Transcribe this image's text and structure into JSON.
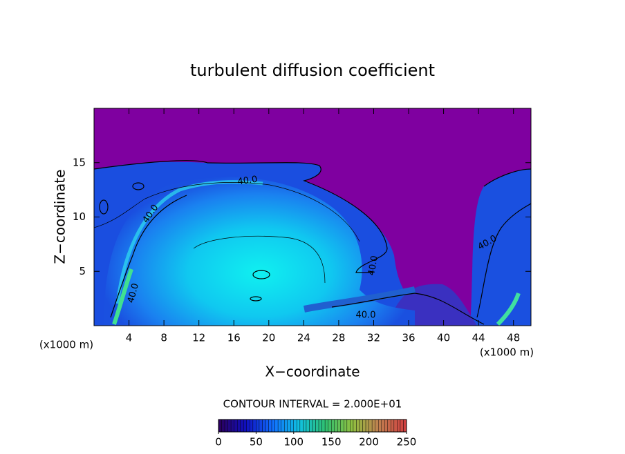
{
  "chart_data": {
    "type": "contour",
    "title": "turbulent diffusion coefficient",
    "x_label": "X−coordinate",
    "y_label": "Z−coordinate",
    "x_unit": "(x1000 m)",
    "xlim": [
      0,
      50
    ],
    "ylim": [
      0,
      20
    ],
    "xticks": [
      4,
      8,
      12,
      16,
      20,
      24,
      28,
      32,
      36,
      40,
      44,
      48
    ],
    "yticks": [
      5,
      10,
      15
    ],
    "contour_label": "40.0",
    "contour_interval_label": "CONTOUR INTERVAL = 2.000E+01",
    "colorbar_lim": [
      0,
      250
    ],
    "colorbar_ticks": [
      0,
      50,
      100,
      150,
      200,
      250
    ],
    "colormap": [
      "#2a0060",
      "#1010c0",
      "#1070ff",
      "#10c0e0",
      "#30c070",
      "#90c040",
      "#c08050",
      "#d04040"
    ]
  }
}
